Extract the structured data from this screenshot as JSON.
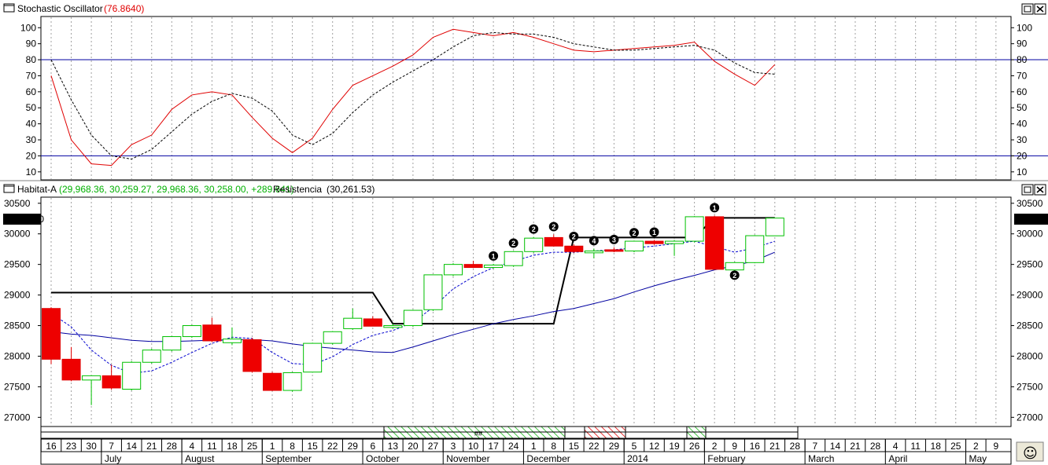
{
  "stoch_panel": {
    "title": "Stochastic Oscillator",
    "value": "(76.8640)",
    "y_ticks": [
      10,
      20,
      30,
      40,
      50,
      60,
      70,
      80,
      90,
      100
    ],
    "levels": [
      20,
      80
    ]
  },
  "price_panel": {
    "title": "Habitat-A",
    "ohlc_text": "(29,968.36, 30,259.27, 29,968.36, 30,258.00, +289.641)",
    "indicator_title": "Resistencia",
    "indicator_value": "(30,261.53)",
    "last_price": "30258.00",
    "y_ticks": [
      27000,
      27500,
      28000,
      28500,
      29000,
      29500,
      30000,
      30500
    ]
  },
  "time_axis": {
    "day_labels": [
      "16",
      "23",
      "30",
      "7",
      "14",
      "21",
      "28",
      "4",
      "11",
      "18",
      "25",
      "1",
      "8",
      "15",
      "22",
      "29",
      "6",
      "13",
      "20",
      "27",
      "3",
      "10",
      "17",
      "24",
      "1",
      "8",
      "15",
      "22",
      "29",
      "5",
      "12",
      "19",
      "26",
      "2",
      "9",
      "16",
      "21",
      "28",
      "7",
      "14",
      "21",
      "28",
      "4",
      "11",
      "18",
      "25",
      "2",
      "9"
    ],
    "month_labels": [
      {
        "text": "July",
        "at": 3
      },
      {
        "text": "August",
        "at": 7
      },
      {
        "text": "September",
        "at": 11
      },
      {
        "text": "October",
        "at": 16
      },
      {
        "text": "November",
        "at": 20
      },
      {
        "text": "December",
        "at": 24
      },
      {
        "text": "2014",
        "at": 29
      },
      {
        "text": "February",
        "at": 33
      },
      {
        "text": "March",
        "at": 38
      },
      {
        "text": "April",
        "at": 42
      },
      {
        "text": "May",
        "at": 46
      }
    ],
    "band_label": "##"
  },
  "buttons": {
    "smiley": "☺"
  },
  "chart_data": [
    {
      "type": "line",
      "title": "Stochastic Oscillator",
      "ylim": [
        5,
        107
      ],
      "x_index": [
        0,
        1,
        2,
        3,
        4,
        5,
        6,
        7,
        8,
        9,
        10,
        11,
        12,
        13,
        14,
        15,
        16,
        17,
        18,
        19,
        20,
        21,
        22,
        23,
        24,
        25,
        26,
        27,
        28,
        29,
        30,
        31,
        32,
        33,
        34,
        35,
        36
      ],
      "series": [
        {
          "color": "#e00000",
          "style": "solid",
          "values": [
            70,
            30,
            15,
            14,
            27,
            33,
            49,
            58,
            60,
            58,
            44,
            31,
            22,
            31,
            49,
            64,
            70,
            76,
            83,
            94,
            99,
            97,
            95,
            97,
            94,
            90,
            86,
            85,
            86,
            87,
            88,
            89,
            91,
            79,
            71,
            64,
            77
          ]
        },
        {
          "color": "#000000",
          "style": "dashed",
          "values": [
            80,
            55,
            33,
            20,
            18,
            24,
            35,
            46,
            54,
            59,
            56,
            48,
            33,
            27,
            34,
            47,
            58,
            66,
            73,
            80,
            88,
            95,
            97,
            96,
            96,
            94,
            90,
            88,
            86,
            86,
            87,
            88,
            89,
            86,
            78,
            72,
            71
          ]
        }
      ],
      "horizontal_lines": [
        20,
        80
      ]
    },
    {
      "type": "candlestick",
      "title": "Habitat-A",
      "ylim": [
        26850,
        30600
      ],
      "x_index": [
        0,
        1,
        2,
        3,
        4,
        5,
        6,
        7,
        8,
        9,
        10,
        11,
        12,
        13,
        14,
        15,
        16,
        17,
        18,
        19,
        20,
        21,
        22,
        23,
        24,
        25,
        26,
        27,
        28,
        29,
        30,
        31,
        32,
        33,
        34,
        35,
        36
      ],
      "candles": [
        {
          "o": 28780,
          "h": 28800,
          "l": 27870,
          "c": 27950
        },
        {
          "o": 27950,
          "h": 28150,
          "l": 27590,
          "c": 27610
        },
        {
          "o": 27610,
          "h": 27680,
          "l": 27200,
          "c": 27680
        },
        {
          "o": 27680,
          "h": 27860,
          "l": 27450,
          "c": 27480
        },
        {
          "o": 27460,
          "h": 27920,
          "l": 27440,
          "c": 27900
        },
        {
          "o": 27900,
          "h": 28120,
          "l": 27880,
          "c": 28100
        },
        {
          "o": 28100,
          "h": 28330,
          "l": 28080,
          "c": 28320
        },
        {
          "o": 28320,
          "h": 28510,
          "l": 28300,
          "c": 28500
        },
        {
          "o": 28510,
          "h": 28630,
          "l": 28230,
          "c": 28250
        },
        {
          "o": 28220,
          "h": 28470,
          "l": 28180,
          "c": 28280
        },
        {
          "o": 28270,
          "h": 28300,
          "l": 27730,
          "c": 27750
        },
        {
          "o": 27720,
          "h": 27740,
          "l": 27430,
          "c": 27440
        },
        {
          "o": 27440,
          "h": 27740,
          "l": 27420,
          "c": 27730
        },
        {
          "o": 27740,
          "h": 28220,
          "l": 27730,
          "c": 28210
        },
        {
          "o": 28210,
          "h": 28410,
          "l": 28190,
          "c": 28400
        },
        {
          "o": 28450,
          "h": 28780,
          "l": 28430,
          "c": 28620
        },
        {
          "o": 28610,
          "h": 28650,
          "l": 28490,
          "c": 28490
        },
        {
          "o": 28470,
          "h": 28530,
          "l": 28450,
          "c": 28500
        },
        {
          "o": 28500,
          "h": 28760,
          "l": 28480,
          "c": 28750
        },
        {
          "o": 28760,
          "h": 29330,
          "l": 28740,
          "c": 29330
        },
        {
          "o": 29330,
          "h": 29520,
          "l": 29310,
          "c": 29500
        },
        {
          "o": 29500,
          "h": 29560,
          "l": 29440,
          "c": 29450
        },
        {
          "o": 29450,
          "h": 29510,
          "l": 29430,
          "c": 29490
        },
        {
          "o": 29480,
          "h": 29720,
          "l": 29460,
          "c": 29710
        },
        {
          "o": 29710,
          "h": 29950,
          "l": 29690,
          "c": 29930
        },
        {
          "o": 29940,
          "h": 29990,
          "l": 29790,
          "c": 29800
        },
        {
          "o": 29800,
          "h": 29830,
          "l": 29690,
          "c": 29710
        },
        {
          "o": 29690,
          "h": 29760,
          "l": 29600,
          "c": 29720
        },
        {
          "o": 29740,
          "h": 29780,
          "l": 29700,
          "c": 29720
        },
        {
          "o": 29720,
          "h": 29890,
          "l": 29700,
          "c": 29880
        },
        {
          "o": 29880,
          "h": 29900,
          "l": 29820,
          "c": 29840
        },
        {
          "o": 29840,
          "h": 29900,
          "l": 29640,
          "c": 29880
        },
        {
          "o": 29880,
          "h": 30290,
          "l": 29860,
          "c": 30280
        },
        {
          "o": 30280,
          "h": 30300,
          "l": 29410,
          "c": 29420
        },
        {
          "o": 29410,
          "h": 29540,
          "l": 29320,
          "c": 29530
        },
        {
          "o": 29530,
          "h": 29980,
          "l": 29520,
          "c": 29970
        },
        {
          "o": 29968.36,
          "h": 30259.27,
          "l": 29968.36,
          "c": 30258.0
        }
      ],
      "series": [
        {
          "name": "Resistencia",
          "color": "#000000",
          "style": "solid",
          "values": [
            29040,
            29040,
            29040,
            29040,
            29040,
            29040,
            29040,
            29040,
            29040,
            29040,
            29040,
            29040,
            29040,
            29040,
            29040,
            29040,
            29040,
            28530,
            28530,
            28530,
            28530,
            28530,
            28530,
            28530,
            28530,
            28530,
            29940,
            29940,
            29940,
            29940,
            29940,
            29940,
            29940,
            30261.53,
            30261.53,
            30261.53,
            30261.53
          ]
        },
        {
          "color": "#0000a0",
          "style": "solid",
          "values": [
            28400,
            28360,
            28340,
            28300,
            28260,
            28240,
            28240,
            28250,
            28260,
            28270,
            28270,
            28250,
            28200,
            28160,
            28130,
            28100,
            28070,
            28060,
            28150,
            28250,
            28350,
            28440,
            28530,
            28600,
            28660,
            28730,
            28780,
            28860,
            28940,
            29050,
            29150,
            29240,
            29320,
            29410,
            29480,
            29560,
            29700
          ]
        },
        {
          "color": "#0000d0",
          "style": "dashed",
          "values": [
            28700,
            28480,
            28100,
            27850,
            27720,
            27760,
            27900,
            28060,
            28210,
            28310,
            28290,
            28060,
            27880,
            27860,
            27990,
            28190,
            28340,
            28420,
            28550,
            28800,
            29100,
            29300,
            29450,
            29550,
            29650,
            29700,
            29700,
            29720,
            29740,
            29770,
            29800,
            29840,
            29880,
            29790,
            29700,
            29770,
            29880
          ]
        }
      ],
      "markers": [
        {
          "x": 22,
          "label": "1"
        },
        {
          "x": 23,
          "label": "2"
        },
        {
          "x": 24,
          "label": "2"
        },
        {
          "x": 25,
          "label": "2"
        },
        {
          "x": 26,
          "label": "2"
        },
        {
          "x": 27,
          "label": "4"
        },
        {
          "x": 28,
          "label": "3"
        },
        {
          "x": 29,
          "label": "2"
        },
        {
          "x": 30,
          "label": "1"
        },
        {
          "x": 33,
          "label": "1"
        },
        {
          "x": 34,
          "label": "2"
        }
      ]
    }
  ]
}
